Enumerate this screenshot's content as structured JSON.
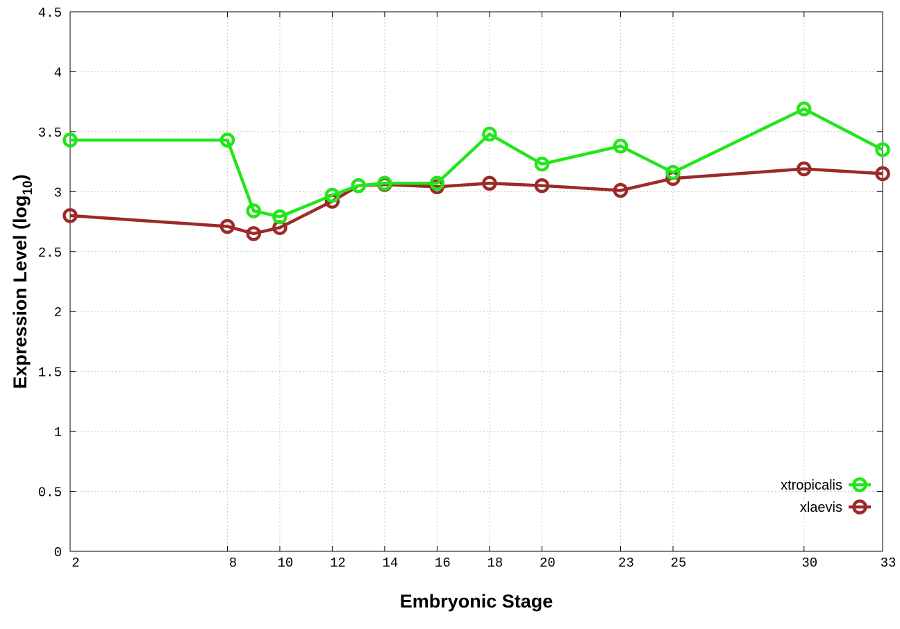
{
  "chart_data": {
    "type": "line",
    "title": "",
    "xlabel": "Embryonic Stage",
    "ylabel_main": "Expression Level (log",
    "ylabel_sub": "10",
    "ylabel_close": ")",
    "xlim": [
      2,
      33
    ],
    "ylim": [
      0,
      4.5
    ],
    "x_ticks": [
      2,
      8,
      10,
      12,
      14,
      16,
      18,
      20,
      23,
      25,
      30,
      33
    ],
    "y_ticks": [
      0,
      0.5,
      1,
      1.5,
      2,
      2.5,
      3,
      3.5,
      4,
      4.5
    ],
    "x_tick_labels": [
      "2",
      "8",
      "10",
      "12",
      "14",
      "16",
      "18",
      "20",
      "23",
      "25",
      "30",
      "33"
    ],
    "y_tick_labels": [
      "0",
      "0.5",
      "1",
      "1.5",
      "2",
      "2.5",
      "3",
      "3.5",
      "4",
      "4.5"
    ],
    "grid": true,
    "legend_position": "bottom-right",
    "x": [
      2,
      8,
      9,
      10,
      12,
      13,
      14,
      16,
      18,
      20,
      23,
      25,
      30,
      33
    ],
    "series": [
      {
        "name": "xtropicalis",
        "color": "#22e61a",
        "values": [
          3.43,
          3.43,
          2.84,
          2.79,
          2.97,
          3.05,
          3.07,
          3.07,
          3.48,
          3.23,
          3.38,
          3.16,
          3.69,
          3.35
        ]
      },
      {
        "name": "xlaevis",
        "color": "#9b2a28",
        "values": [
          2.8,
          2.71,
          2.65,
          2.7,
          2.92,
          3.05,
          3.06,
          3.04,
          3.07,
          3.05,
          3.01,
          3.11,
          3.19,
          3.15
        ]
      }
    ]
  }
}
